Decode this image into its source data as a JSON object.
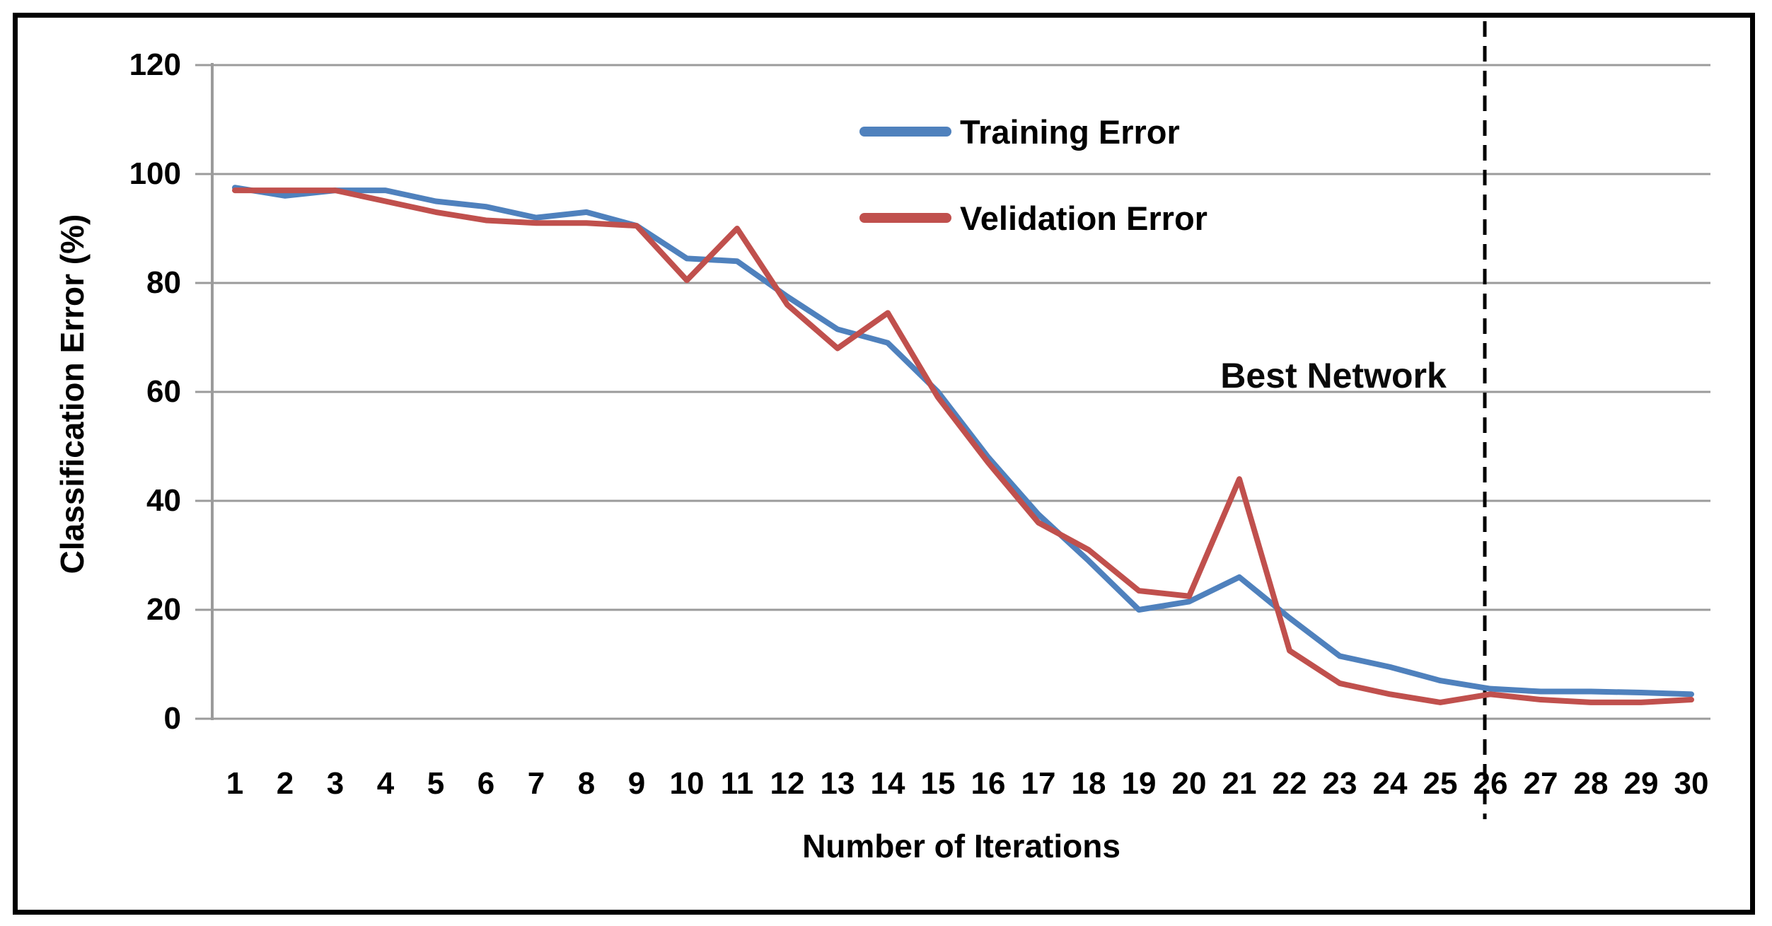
{
  "chart_data": {
    "type": "line",
    "title": "",
    "xlabel": "Number of Iterations",
    "ylabel": "Classification  Error (%)",
    "x_categories": [
      1,
      2,
      3,
      4,
      5,
      6,
      7,
      8,
      9,
      10,
      11,
      12,
      13,
      14,
      15,
      16,
      17,
      18,
      19,
      20,
      21,
      22,
      23,
      24,
      25,
      26,
      27,
      28,
      29,
      30
    ],
    "y_ticks": [
      0,
      20,
      40,
      60,
      80,
      100,
      120
    ],
    "ylim": [
      0,
      120
    ],
    "grid": "horizontal",
    "grid_color": "#9b9b9b",
    "series": [
      {
        "name": "Training Error",
        "color": "#4f81bd",
        "values": [
          97.5,
          96,
          97,
          97,
          95,
          94,
          92,
          93,
          90.5,
          84.5,
          84,
          77.5,
          71.5,
          69,
          60,
          48,
          37.5,
          29,
          20,
          21.5,
          26,
          18.5,
          11.5,
          9.5,
          7,
          5.5,
          5,
          5,
          4.8,
          4.5
        ]
      },
      {
        "name": "Velidation Error",
        "color": "#c0504d",
        "values": [
          97,
          97,
          97,
          95,
          93,
          91.5,
          91,
          91,
          90.5,
          80.5,
          90,
          76,
          68,
          74.5,
          59,
          47,
          36,
          31,
          23.5,
          22.5,
          44,
          12.5,
          6.5,
          4.5,
          3,
          4.5,
          3.5,
          3,
          3,
          3.5
        ]
      }
    ],
    "annotation": {
      "label": "Best Network",
      "line_x": 26,
      "line_style": "dashed",
      "line_color": "#000000"
    },
    "legend_position": "upper-right-of-center"
  }
}
